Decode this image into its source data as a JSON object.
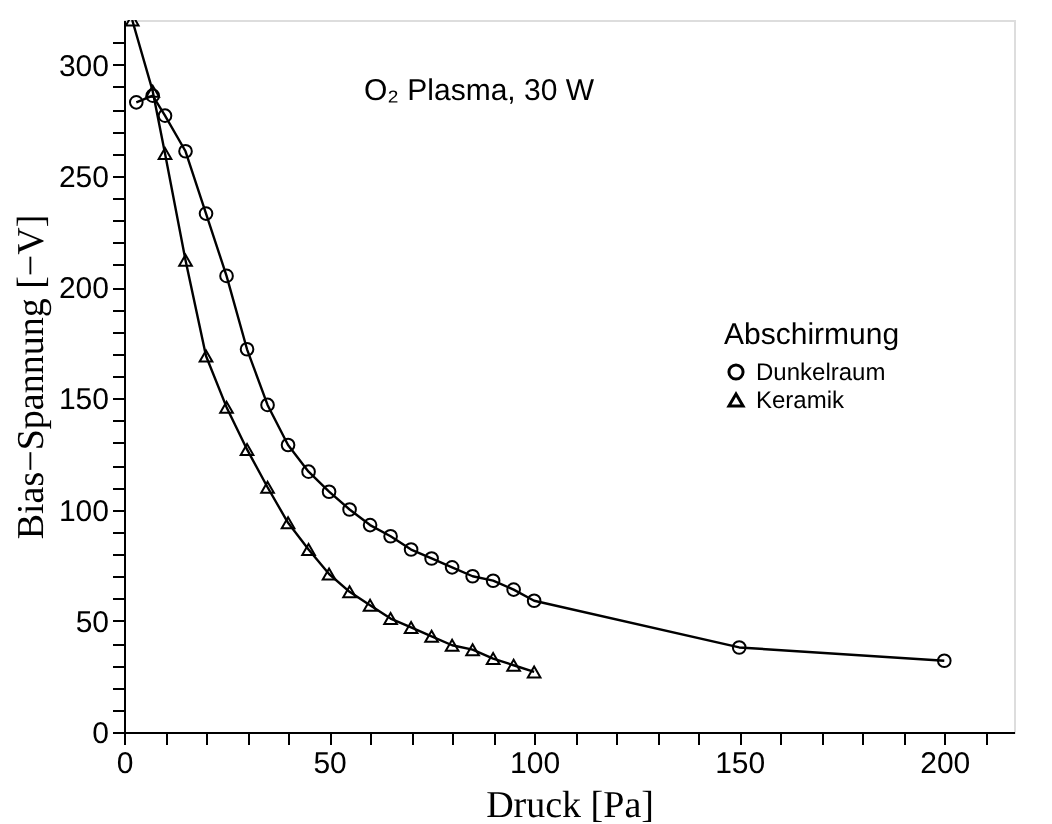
{
  "chart_data": {
    "type": "line",
    "xlabel": "Druck [Pa]",
    "ylabel": "Bias−Spannung [−V]",
    "legend_title": "Abschirmung",
    "annotations": [
      "O₂ Plasma, 30 W"
    ],
    "xlim": [
      0,
      217
    ],
    "ylim": [
      0,
      320
    ],
    "xticks": [
      0,
      {
        "value": 10,
        "label": null
      },
      {
        "value": 20,
        "label": null
      },
      {
        "value": 30,
        "label": null
      },
      {
        "value": 40,
        "label": null
      },
      50,
      {
        "value": 60,
        "label": null
      },
      {
        "value": 70,
        "label": null
      },
      {
        "value": 80,
        "label": null
      },
      {
        "value": 90,
        "label": null
      },
      100,
      {
        "value": 110,
        "label": null
      },
      {
        "value": 120,
        "label": null
      },
      {
        "value": 130,
        "label": null
      },
      {
        "value": 140,
        "label": null
      },
      150,
      {
        "value": 160,
        "label": null
      },
      {
        "value": 170,
        "label": null
      },
      {
        "value": 180,
        "label": null
      },
      {
        "value": 190,
        "label": null
      },
      200,
      {
        "value": 210,
        "label": null
      }
    ],
    "yticks": [
      0,
      {
        "value": 10,
        "label": null
      },
      {
        "value": 20,
        "label": null
      },
      {
        "value": 30,
        "label": null
      },
      {
        "value": 40,
        "label": null
      },
      50,
      {
        "value": 60,
        "label": null
      },
      {
        "value": 70,
        "label": null
      },
      {
        "value": 80,
        "label": null
      },
      {
        "value": 90,
        "label": null
      },
      100,
      {
        "value": 110,
        "label": null
      },
      {
        "value": 120,
        "label": null
      },
      {
        "value": 130,
        "label": null
      },
      {
        "value": 140,
        "label": null
      },
      150,
      {
        "value": 160,
        "label": null
      },
      {
        "value": 170,
        "label": null
      },
      {
        "value": 180,
        "label": null
      },
      {
        "value": 190,
        "label": null
      },
      200,
      {
        "value": 210,
        "label": null
      },
      {
        "value": 220,
        "label": null
      },
      {
        "value": 230,
        "label": null
      },
      {
        "value": 240,
        "label": null
      },
      250,
      {
        "value": 260,
        "label": null
      },
      {
        "value": 270,
        "label": null
      },
      {
        "value": 280,
        "label": null
      },
      {
        "value": 290,
        "label": null
      },
      300,
      {
        "value": 310,
        "label": null
      }
    ],
    "grid": false,
    "legend": "right",
    "line_style": "solid",
    "series": [
      {
        "name": "Dunkelraum",
        "color": "#000000",
        "marker": "circle",
        "x": [
          3,
          7,
          10,
          15,
          20,
          25,
          30,
          35,
          40,
          45,
          50,
          55,
          60,
          65,
          70,
          75,
          80,
          85,
          90,
          95,
          100,
          150,
          200
        ],
        "values": [
          283,
          286,
          277,
          261,
          233,
          205,
          172,
          147,
          129,
          117,
          108,
          100,
          93,
          88,
          82,
          78,
          74,
          70,
          68,
          64,
          59,
          38,
          32
        ]
      },
      {
        "name": "Keramik",
        "color": "#000000",
        "marker": "triangle",
        "x": [
          2,
          7,
          10,
          15,
          20,
          25,
          30,
          35,
          40,
          45,
          50,
          55,
          60,
          65,
          70,
          75,
          80,
          85,
          90,
          95,
          100
        ],
        "values": [
          320,
          288,
          260,
          212,
          169,
          146,
          127,
          110,
          94,
          82,
          71,
          63,
          57,
          51,
          47,
          43,
          39,
          37,
          33,
          30,
          27
        ]
      }
    ]
  }
}
